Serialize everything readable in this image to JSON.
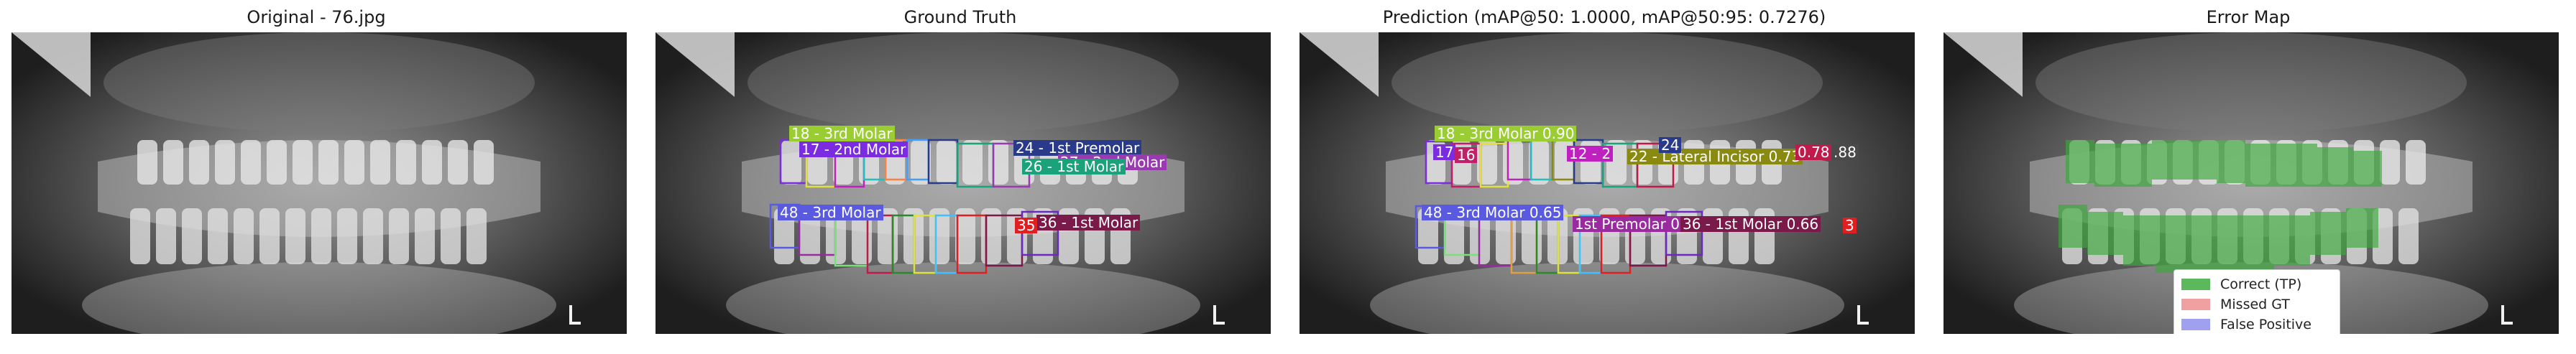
{
  "panels": [
    {
      "title": "Original - 76.jpg"
    },
    {
      "title": "Ground Truth"
    },
    {
      "title": "Prediction (mAP@50: 1.0000, mAP@50:95: 0.7276)"
    },
    {
      "title": "Error Map"
    }
  ],
  "ground_truth_labels": [
    {
      "text": "18 - 3rd Molar",
      "bg": "#9acd32",
      "fg": "#ffffff"
    },
    {
      "text": "17 - 2nd Molar",
      "bg": "#7b2be0",
      "fg": "#ffffff"
    },
    {
      "text": "24 - 1st Premolar",
      "bg": "#2a3a8a",
      "fg": "#ffffff"
    },
    {
      "text": "27 - 2nd Molar",
      "bg": "#9a3ab0",
      "fg": "#ffffff"
    },
    {
      "text": "26 - 1st Molar",
      "bg": "#1aa37a",
      "fg": "#ffffff"
    },
    {
      "text": "48 - 3rd Molar",
      "bg": "#5a5ae0",
      "fg": "#ffffff"
    },
    {
      "text": "36 - 1st Molar",
      "bg": "#7a1a4a",
      "fg": "#ffffff"
    },
    {
      "text": "35",
      "bg": "#e02020",
      "fg": "#ffffff"
    }
  ],
  "prediction_labels": [
    {
      "text": "18 - 3rd Molar 0.90",
      "bg": "#9acd32",
      "fg": "#ffffff"
    },
    {
      "text": "17",
      "bg": "#7b2be0",
      "fg": "#ffffff"
    },
    {
      "text": "16",
      "bg": "#c0206a",
      "fg": "#ffffff"
    },
    {
      "text": "12 - 2",
      "bg": "#c020c0",
      "fg": "#ffffff"
    },
    {
      "text": "22 - Lateral Incisor 0.73",
      "bg": "#8a8a10",
      "fg": "#ffffff"
    },
    {
      "text": "24",
      "bg": "#2a3a8a",
      "fg": "#ffffff"
    },
    {
      "text": "0.78",
      "bg": "#c01a4a",
      "fg": "#ffffff"
    },
    {
      "text": ".88",
      "bg": "#4a4a4a",
      "fg": "#ffffff"
    },
    {
      "text": "48 - 3rd Molar 0.65",
      "bg": "#5a5ae0",
      "fg": "#ffffff"
    },
    {
      "text": "1st Premolar 0.",
      "bg": "#9a2aa0",
      "fg": "#ffffff"
    },
    {
      "text": "36 - 1st Molar 0.66",
      "bg": "#7a1a4a",
      "fg": "#ffffff"
    },
    {
      "text": "3",
      "bg": "#e02020",
      "fg": "#ffffff"
    }
  ],
  "legend": [
    {
      "label": "Correct (TP)",
      "color": "#5cb85c"
    },
    {
      "label": "Missed GT",
      "color": "#f0a0a0"
    },
    {
      "label": "False Positive",
      "color": "#a0a0f0"
    }
  ],
  "colors": {
    "correct": "#3aa83a",
    "background": "#ffffff"
  }
}
